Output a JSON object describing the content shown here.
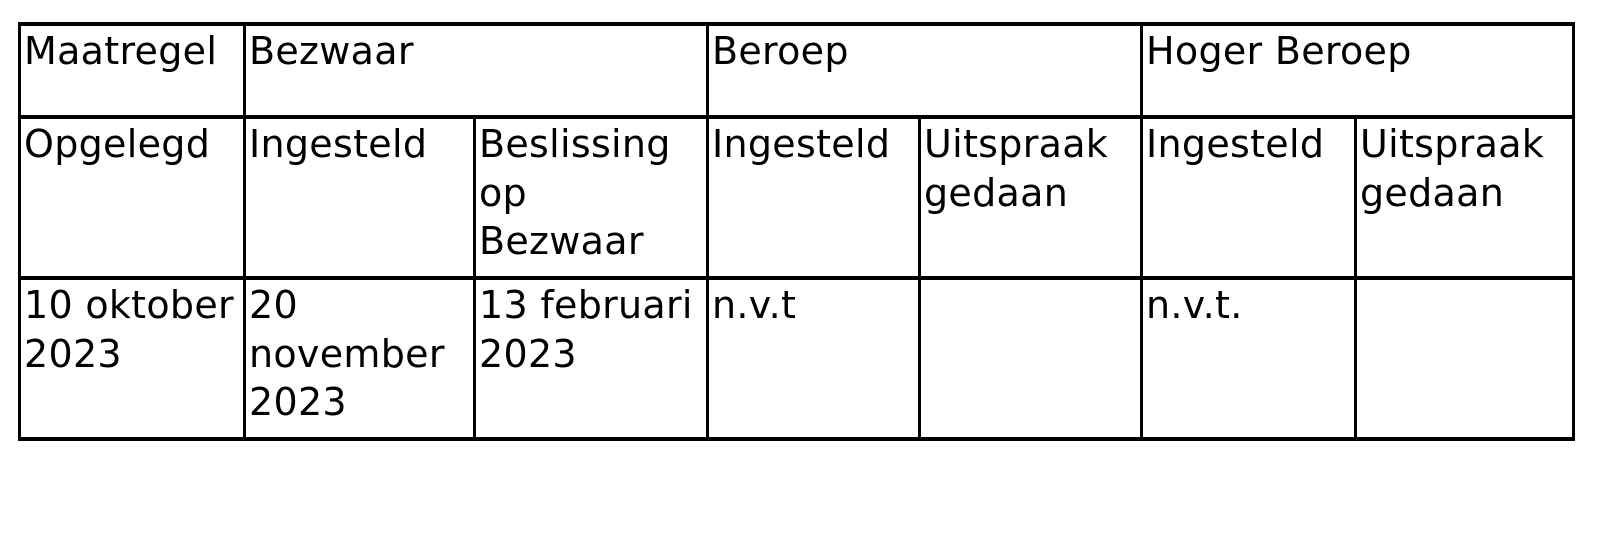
{
  "colors": {
    "border": "#000000",
    "text": "#000000",
    "background": "#ffffff"
  },
  "table": {
    "group_headers": [
      {
        "label": "Maatregel"
      },
      {
        "label": "Bezwaar"
      },
      {
        "label": "Beroep"
      },
      {
        "label": "Hoger Beroep"
      }
    ],
    "sub_headers": [
      "Opgelegd",
      "Ingesteld",
      "Beslissing\nop\nBezwaar",
      "Ingesteld",
      "Uitspraak\ngedaan",
      "Ingesteld",
      "Uitspraak\ngedaan"
    ],
    "rows": [
      [
        "10 oktober\n2023",
        "20\nnovember\n2023",
        "13 februari\n2023",
        "n.v.t",
        "",
        "n.v.t.",
        ""
      ]
    ]
  }
}
